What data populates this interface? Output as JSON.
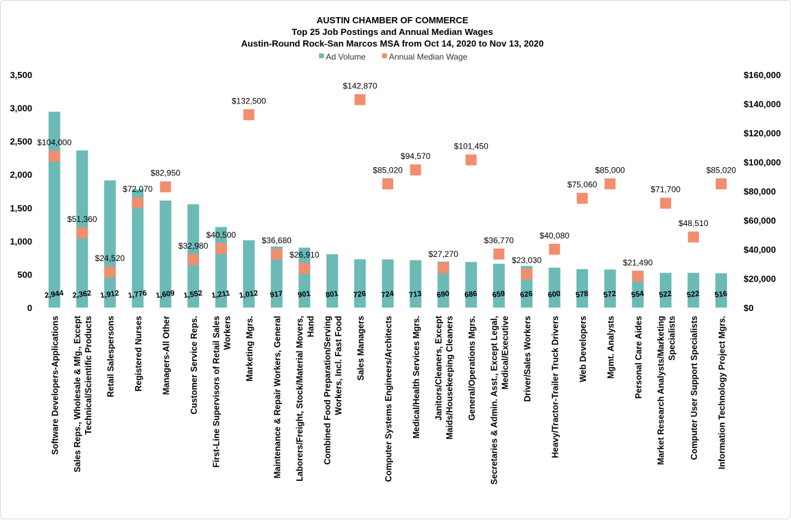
{
  "chart_data": {
    "type": "bar",
    "title": "AUSTIN CHAMBER OF COMMERCE",
    "subtitle": "Top 25 Job Postings and Annual Median Wages",
    "subtitle2": "Austin-Round Rock-San Marcos MSA from Oct 14, 2020 to Nov 13, 2020",
    "legend_position": "top",
    "grid": false,
    "colors": {
      "bars": "#6cbab6",
      "markers": "#f28d6e",
      "text": "#000000"
    },
    "categories": [
      [
        "Software Developers-Applications"
      ],
      [
        "Sales Reps., Wholesale & Mfg., Except",
        "Technical/Scientific Products"
      ],
      [
        "Retail Salespersons"
      ],
      [
        "Registered Nurses"
      ],
      [
        "Managers-All Other"
      ],
      [
        "Customer Service Reps."
      ],
      [
        "First-Line Supervisors of Retail Sales",
        "Workers"
      ],
      [
        "Marketing Mgrs."
      ],
      [
        "Maintenance & Repair Workers, General"
      ],
      [
        "Laborers/Freight, Stock/Material Movers,",
        "Hand"
      ],
      [
        "Combined Food Preparation/Serving",
        "Workers, Incl. Fast Food"
      ],
      [
        "Sales Managers"
      ],
      [
        "Computer Systems Engineers/Architects"
      ],
      [
        "Medical/Health Services Mgrs."
      ],
      [
        "Janitors/Cleaners, Except",
        "Maids/Housekeeping Cleaners"
      ],
      [
        "General/Operations Mgrs."
      ],
      [
        "Secretaries & Admin. Asst., Except Legal,",
        "Medical/Executive"
      ],
      [
        "Driver/Sales Workers"
      ],
      [
        "Heavy/Tractor-Trailer Truck Drivers"
      ],
      [
        "Web Developers"
      ],
      [
        "Mgmt. Analysts"
      ],
      [
        "Personal Care Aides"
      ],
      [
        "Market Research Analysts/Marketing",
        "Specialists"
      ],
      [
        "Computer User Support Specialists"
      ],
      [
        "Information Technology Project Mgrs."
      ]
    ],
    "series": [
      {
        "name": "Ad Volume",
        "type": "bar",
        "axis": "left",
        "values": [
          2944,
          2362,
          1912,
          1776,
          1609,
          1552,
          1211,
          1012,
          917,
          901,
          801,
          726,
          724,
          713,
          690,
          686,
          659,
          626,
          600,
          578,
          572,
          554,
          522,
          522,
          516
        ],
        "labels": [
          "2,944",
          "2,362",
          "1,912",
          "1,776",
          "1,609",
          "1,552",
          "1,211",
          "1,012",
          "917",
          "901",
          "801",
          "726",
          "724",
          "713",
          "690",
          "686",
          "659",
          "626",
          "600",
          "578",
          "572",
          "554",
          "522",
          "522",
          "516"
        ]
      },
      {
        "name": "Annual Median Wage",
        "type": "scatter",
        "axis": "right",
        "values": [
          104000,
          51360,
          24520,
          72070,
          82950,
          32980,
          40500,
          132500,
          36680,
          26910,
          null,
          142870,
          85020,
          94570,
          27270,
          101450,
          36770,
          23030,
          40080,
          75060,
          85000,
          21490,
          71700,
          48510,
          85020
        ],
        "labels": [
          "$104,000",
          "$51,360",
          "$24,520",
          "$72,070",
          "$82,950",
          "$32,980",
          "$40,500",
          "$132,500",
          "$36,680",
          "$26,910",
          "",
          "$142,870",
          "$85,020",
          "$94,570",
          "$27,270",
          "$101,450",
          "$36,770",
          "$23,030",
          "$40,080",
          "$75,060",
          "$85,000",
          "$21,490",
          "$71,700",
          "$48,510",
          "$85,020"
        ]
      }
    ],
    "y_left": {
      "min": 0,
      "max": 3500,
      "ticks": [
        0,
        500,
        1000,
        1500,
        2000,
        2500,
        3000,
        3500
      ],
      "tick_labels": [
        "0",
        "500",
        "1,000",
        "1,500",
        "2,000",
        "2,500",
        "3,000",
        "3,500"
      ]
    },
    "y_right": {
      "min": 0,
      "max": 160000,
      "ticks": [
        0,
        20000,
        40000,
        60000,
        80000,
        100000,
        120000,
        140000,
        160000
      ],
      "tick_labels": [
        "$0",
        "$20,000",
        "$40,000",
        "$60,000",
        "$80,000",
        "$100,000",
        "$120,000",
        "$140,000",
        "$160,000"
      ]
    }
  }
}
